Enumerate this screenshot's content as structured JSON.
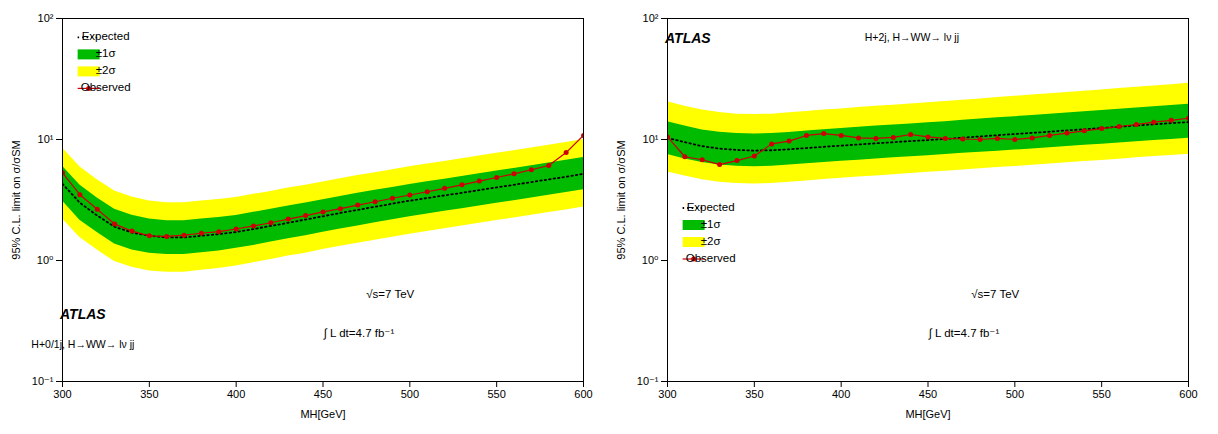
{
  "chart_data": [
    {
      "type": "line",
      "log": "y",
      "grid": false,
      "legend": "upper left",
      "xlabel": "MH[GeV]",
      "ylabel": "95% C.L. limit on σ/σSM",
      "x": [
        300,
        310,
        320,
        330,
        340,
        350,
        360,
        370,
        380,
        390,
        400,
        410,
        420,
        430,
        440,
        450,
        460,
        470,
        480,
        490,
        500,
        510,
        520,
        530,
        540,
        550,
        560,
        570,
        580,
        590,
        600
      ],
      "xlim": [
        300,
        600
      ],
      "xticks": [
        300,
        350,
        400,
        450,
        500,
        550,
        600
      ],
      "ylim": [
        0.1,
        100
      ],
      "yticks": [
        {
          "value": 0.1,
          "label": "10⁻¹"
        },
        {
          "value": 1,
          "label": "10⁰"
        },
        {
          "value": 10,
          "label": "10¹"
        },
        {
          "value": 100,
          "label": "10²"
        }
      ],
      "annotations": [
        "ATLAS",
        "H+0/1j, H→WW→ lν jj",
        "√s=7 TeV",
        "∫ L dt=4.7 fb⁻¹"
      ],
      "series": [
        {
          "name": "Expected",
          "type": "line",
          "line_style": "dotted",
          "color": "#000000",
          "values": [
            4.3,
            3.0,
            2.35,
            1.9,
            1.7,
            1.6,
            1.55,
            1.55,
            1.6,
            1.65,
            1.72,
            1.82,
            1.93,
            2.05,
            2.18,
            2.32,
            2.47,
            2.62,
            2.78,
            2.95,
            3.12,
            3.28,
            3.45,
            3.62,
            3.82,
            4.02,
            4.22,
            4.45,
            4.68,
            4.92,
            5.2
          ]
        },
        {
          "name": "±1σ",
          "type": "area",
          "color": "#00bb00",
          "lower": [
            3.1,
            2.15,
            1.7,
            1.37,
            1.22,
            1.15,
            1.12,
            1.12,
            1.16,
            1.2,
            1.26,
            1.33,
            1.42,
            1.51,
            1.6,
            1.71,
            1.82,
            1.93,
            2.05,
            2.17,
            2.3,
            2.42,
            2.55,
            2.68,
            2.82,
            2.97,
            3.12,
            3.29,
            3.46,
            3.65,
            3.85
          ],
          "upper": [
            6.0,
            4.2,
            3.28,
            2.65,
            2.37,
            2.2,
            2.13,
            2.13,
            2.2,
            2.27,
            2.36,
            2.5,
            2.65,
            2.82,
            2.98,
            3.17,
            3.38,
            3.59,
            3.8,
            4.02,
            4.25,
            4.47,
            4.7,
            4.94,
            5.21,
            5.48,
            5.77,
            6.08,
            6.4,
            6.73,
            7.1
          ]
        },
        {
          "name": "±2σ",
          "type": "area",
          "color": "#ffff00",
          "lower": [
            2.2,
            1.55,
            1.22,
            0.98,
            0.88,
            0.82,
            0.8,
            0.8,
            0.83,
            0.86,
            0.9,
            0.96,
            1.02,
            1.09,
            1.15,
            1.23,
            1.31,
            1.39,
            1.47,
            1.56,
            1.65,
            1.74,
            1.83,
            1.93,
            2.03,
            2.14,
            2.25,
            2.37,
            2.49,
            2.62,
            2.77
          ],
          "upper": [
            8.5,
            5.95,
            4.65,
            3.75,
            3.35,
            3.1,
            3.0,
            3.0,
            3.1,
            3.2,
            3.32,
            3.52,
            3.72,
            3.97,
            4.18,
            4.45,
            4.73,
            5.03,
            5.32,
            5.63,
            5.95,
            6.26,
            6.58,
            6.92,
            7.3,
            7.68,
            8.08,
            8.52,
            8.97,
            9.45,
            9.98
          ]
        },
        {
          "name": "Observed",
          "type": "line",
          "line_style": "solid",
          "marker": "circle",
          "color": "#cc0000",
          "values": [
            5.3,
            3.5,
            2.65,
            2.0,
            1.75,
            1.6,
            1.58,
            1.62,
            1.68,
            1.73,
            1.82,
            1.93,
            2.05,
            2.2,
            2.35,
            2.52,
            2.68,
            2.87,
            3.06,
            3.27,
            3.48,
            3.7,
            3.95,
            4.22,
            4.53,
            4.85,
            5.2,
            5.62,
            6.1,
            7.8,
            10.8
          ]
        }
      ]
    },
    {
      "type": "line",
      "log": "y",
      "grid": false,
      "legend": "center left",
      "xlabel": "MH[GeV]",
      "ylabel": "95% C.L. limit on σ/σSM",
      "x": [
        300,
        310,
        320,
        330,
        340,
        350,
        360,
        370,
        380,
        390,
        400,
        410,
        420,
        430,
        440,
        450,
        460,
        470,
        480,
        490,
        500,
        510,
        520,
        530,
        540,
        550,
        560,
        570,
        580,
        590,
        600
      ],
      "xlim": [
        300,
        600
      ],
      "xticks": [
        300,
        350,
        400,
        450,
        500,
        550,
        600
      ],
      "ylim": [
        0.1,
        100
      ],
      "yticks": [
        {
          "value": 0.1,
          "label": "10⁻¹"
        },
        {
          "value": 1,
          "label": "10⁰"
        },
        {
          "value": 10,
          "label": "10¹"
        },
        {
          "value": 100,
          "label": "10²"
        }
      ],
      "annotations": [
        "ATLAS",
        "H+2j, H→WW→ lν jj",
        "√s=7 TeV",
        "∫ L dt=4.7 fb⁻¹"
      ],
      "series": [
        {
          "name": "Expected",
          "type": "line",
          "line_style": "dotted",
          "color": "#000000",
          "values": [
            10.3,
            9.5,
            8.8,
            8.4,
            8.2,
            8.1,
            8.15,
            8.3,
            8.5,
            8.7,
            8.9,
            9.1,
            9.3,
            9.5,
            9.7,
            9.9,
            10.1,
            10.35,
            10.6,
            10.85,
            11.1,
            11.35,
            11.6,
            11.9,
            12.15,
            12.45,
            12.75,
            13.05,
            13.35,
            13.65,
            13.95
          ]
        },
        {
          "name": "±1σ",
          "type": "area",
          "color": "#00bb00",
          "lower": [
            7.5,
            6.9,
            6.45,
            6.15,
            6.0,
            5.95,
            6.0,
            6.15,
            6.3,
            6.45,
            6.6,
            6.75,
            6.9,
            7.05,
            7.2,
            7.35,
            7.5,
            7.68,
            7.85,
            8.0,
            8.18,
            8.35,
            8.55,
            8.75,
            8.95,
            9.15,
            9.35,
            9.58,
            9.8,
            10.02,
            10.25
          ],
          "upper": [
            14.0,
            12.9,
            12.0,
            11.5,
            11.2,
            11.1,
            11.2,
            11.45,
            11.75,
            12.05,
            12.3,
            12.6,
            12.9,
            13.15,
            13.45,
            13.75,
            14.05,
            14.4,
            14.75,
            15.1,
            15.45,
            15.8,
            16.15,
            16.55,
            16.95,
            17.35,
            17.75,
            18.2,
            18.65,
            19.1,
            19.55
          ]
        },
        {
          "name": "±2σ",
          "type": "area",
          "color": "#ffff00",
          "lower": [
            5.4,
            5.0,
            4.65,
            4.44,
            4.32,
            4.28,
            4.32,
            4.44,
            4.55,
            4.67,
            4.78,
            4.9,
            5.0,
            5.12,
            5.23,
            5.35,
            5.46,
            5.6,
            5.73,
            5.86,
            5.98,
            6.12,
            6.26,
            6.42,
            6.57,
            6.72,
            6.88,
            7.05,
            7.22,
            7.38,
            7.55
          ],
          "upper": [
            20.5,
            18.8,
            17.5,
            16.7,
            16.2,
            16.1,
            16.2,
            16.6,
            17.0,
            17.5,
            17.9,
            18.35,
            18.8,
            19.2,
            19.65,
            20.1,
            20.6,
            21.15,
            21.65,
            22.2,
            22.75,
            23.3,
            23.85,
            24.45,
            25.05,
            25.7,
            26.35,
            27.0,
            27.7,
            28.4,
            29.1
          ]
        },
        {
          "name": "Observed",
          "type": "line",
          "line_style": "solid",
          "marker": "circle",
          "color": "#cc0000",
          "values": [
            10.5,
            7.2,
            6.8,
            6.2,
            6.7,
            7.3,
            9.2,
            9.7,
            10.8,
            11.2,
            10.8,
            10.3,
            10.2,
            10.4,
            11.0,
            10.5,
            10.2,
            10.1,
            10.0,
            10.2,
            10.0,
            10.3,
            10.8,
            11.3,
            11.8,
            12.3,
            12.8,
            13.3,
            13.9,
            14.4,
            15.0
          ]
        }
      ]
    }
  ]
}
